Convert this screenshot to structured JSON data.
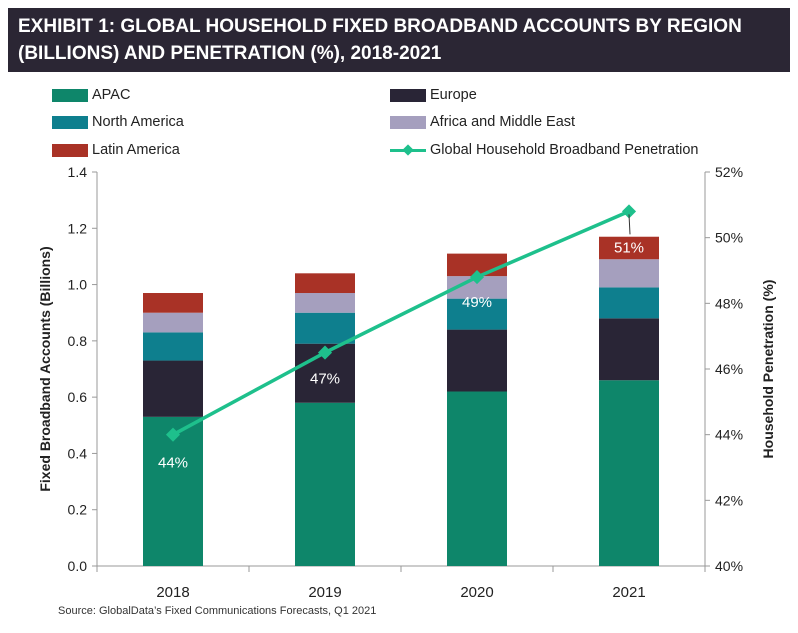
{
  "title": "EXHIBIT 1: GLOBAL HOUSEHOLD FIXED BROADBAND ACCOUNTS BY REGION (BILLIONS) AND PENETRATION (%), 2018-2021",
  "source": "Source: GlobalData’s Fixed Communications Forecasts, Q1 2021",
  "chart_data": {
    "type": "bar",
    "stacked": true,
    "categories": [
      "2018",
      "2019",
      "2020",
      "2021"
    ],
    "ylabel": "Fixed Broadband Accounts (Billions)",
    "ylim": [
      0,
      1.4
    ],
    "yticks": [
      "0.0",
      "0.2",
      "0.4",
      "0.6",
      "0.8",
      "1.0",
      "1.2",
      "1.4"
    ],
    "y2label": "Household Penetration (%)",
    "y2lim": [
      40,
      52
    ],
    "y2ticks": [
      "40%",
      "42%",
      "44%",
      "46%",
      "48%",
      "50%",
      "52%"
    ],
    "grid": false,
    "legend_position": "top",
    "series": [
      {
        "name": "APAC",
        "color": "#0e866a",
        "values": [
          0.53,
          0.58,
          0.62,
          0.66
        ]
      },
      {
        "name": "Europe",
        "color": "#292536",
        "values": [
          0.2,
          0.21,
          0.22,
          0.22
        ]
      },
      {
        "name": "North America",
        "color": "#0e7f8e",
        "values": [
          0.1,
          0.11,
          0.11,
          0.11
        ]
      },
      {
        "name": "Africa and Middle East",
        "color": "#a59fbe",
        "values": [
          0.07,
          0.07,
          0.08,
          0.1
        ]
      },
      {
        "name": "Latin America",
        "color": "#a93226",
        "values": [
          0.07,
          0.07,
          0.08,
          0.08
        ]
      }
    ],
    "line_series": {
      "name": "Global Household Broadband Penetration",
      "color": "#1ec08c",
      "axis": "right",
      "values": [
        44.0,
        46.5,
        48.8,
        50.8
      ],
      "data_labels": [
        "44%",
        "47%",
        "49%",
        "51%"
      ]
    }
  }
}
